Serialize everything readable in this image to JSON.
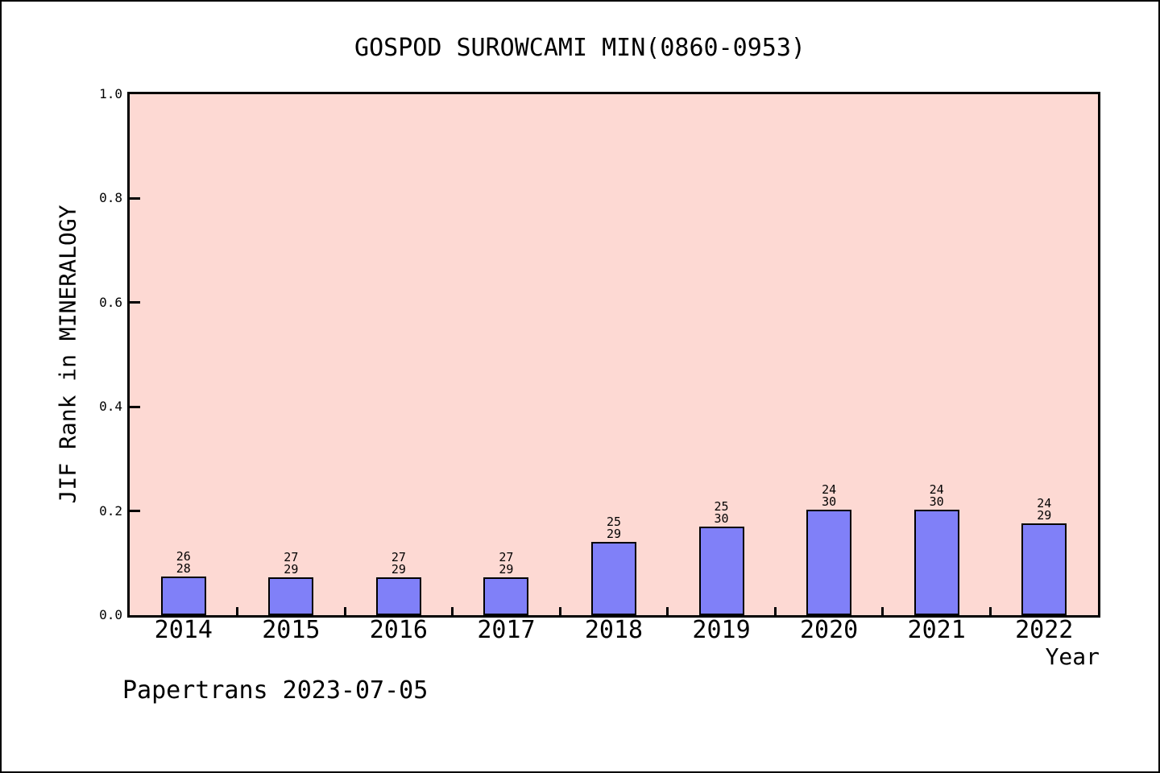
{
  "window": {
    "background": "#ffffff",
    "frame_border_color": "#000000"
  },
  "chart_data": {
    "type": "bar",
    "title": "GOSPOD SUROWCAMI MIN(0860-0953)",
    "xlabel": "Year",
    "ylabel": "JIF Rank in MINERALOGY",
    "ylim": [
      0.0,
      1.0
    ],
    "yticks": [
      "0.0",
      "0.2",
      "0.4",
      "0.6",
      "0.8",
      "1.0"
    ],
    "grid": "off",
    "legend": "none",
    "categories": [
      "2014",
      "2015",
      "2016",
      "2017",
      "2018",
      "2019",
      "2020",
      "2021",
      "2022"
    ],
    "bars": [
      {
        "year": "2014",
        "rank": 26,
        "total": 28,
        "label_top": "26",
        "label_bottom": "28",
        "value": 0.0714
      },
      {
        "year": "2015",
        "rank": 27,
        "total": 29,
        "label_top": "27",
        "label_bottom": "29",
        "value": 0.069
      },
      {
        "year": "2016",
        "rank": 27,
        "total": 29,
        "label_top": "27",
        "label_bottom": "29",
        "value": 0.069
      },
      {
        "year": "2017",
        "rank": 27,
        "total": 29,
        "label_top": "27",
        "label_bottom": "29",
        "value": 0.069
      },
      {
        "year": "2018",
        "rank": 25,
        "total": 29,
        "label_top": "25",
        "label_bottom": "29",
        "value": 0.1379
      },
      {
        "year": "2019",
        "rank": 25,
        "total": 30,
        "label_top": "25",
        "label_bottom": "30",
        "value": 0.1667
      },
      {
        "year": "2020",
        "rank": 24,
        "total": 30,
        "label_top": "24",
        "label_bottom": "30",
        "value": 0.2
      },
      {
        "year": "2021",
        "rank": 24,
        "total": 30,
        "label_top": "24",
        "label_bottom": "30",
        "value": 0.2
      },
      {
        "year": "2022",
        "rank": 24,
        "total": 29,
        "label_top": "24",
        "label_bottom": "29",
        "value": 0.1724
      }
    ],
    "value_formula": "(total - rank) / total",
    "colors": {
      "bar_fill": "#8080f8",
      "bar_border": "#000000",
      "plot_background": "#fdd9d3",
      "axis_color": "#000000",
      "text_color": "#000000"
    }
  },
  "footer": {
    "text": "Papertrans 2023-07-05"
  }
}
